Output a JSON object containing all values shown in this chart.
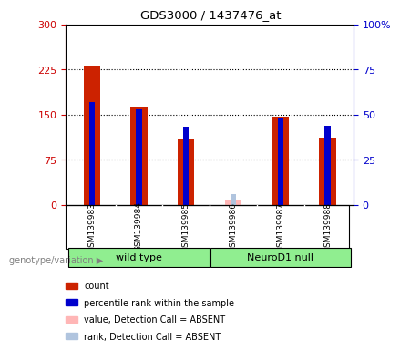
{
  "title": "GDS3000 / 1437476_at",
  "samples": [
    "GSM139983",
    "GSM139984",
    "GSM139985",
    "GSM139986",
    "GSM139987",
    "GSM139988"
  ],
  "count_values": [
    232,
    163,
    110,
    0,
    147,
    112
  ],
  "rank_values": [
    57,
    53,
    43,
    0,
    48,
    44
  ],
  "absent_count": [
    0,
    0,
    0,
    8,
    0,
    0
  ],
  "absent_rank": [
    0,
    0,
    0,
    6,
    0,
    0
  ],
  "absent_flags": [
    false,
    false,
    false,
    true,
    false,
    false
  ],
  "group_label": "genotype/variation",
  "wt_label": "wild type",
  "nd_label": "NeuroD1 null",
  "group_color": "#90ee90",
  "left_ylim": [
    0,
    300
  ],
  "right_ylim": [
    0,
    100
  ],
  "left_yticks": [
    0,
    75,
    150,
    225,
    300
  ],
  "right_yticks": [
    0,
    25,
    50,
    75,
    100
  ],
  "left_tick_color": "#cc0000",
  "right_tick_color": "#0000cc",
  "count_color": "#cc2200",
  "rank_color": "#0000cc",
  "absent_count_color": "#ffb6b6",
  "absent_rank_color": "#b0c4de",
  "xlabel_bg": "#c8c8c8",
  "legend_items": [
    {
      "label": "count",
      "color": "#cc2200"
    },
    {
      "label": "percentile rank within the sample",
      "color": "#0000cc"
    },
    {
      "label": "value, Detection Call = ABSENT",
      "color": "#ffb6b6"
    },
    {
      "label": "rank, Detection Call = ABSENT",
      "color": "#b0c4de"
    }
  ]
}
